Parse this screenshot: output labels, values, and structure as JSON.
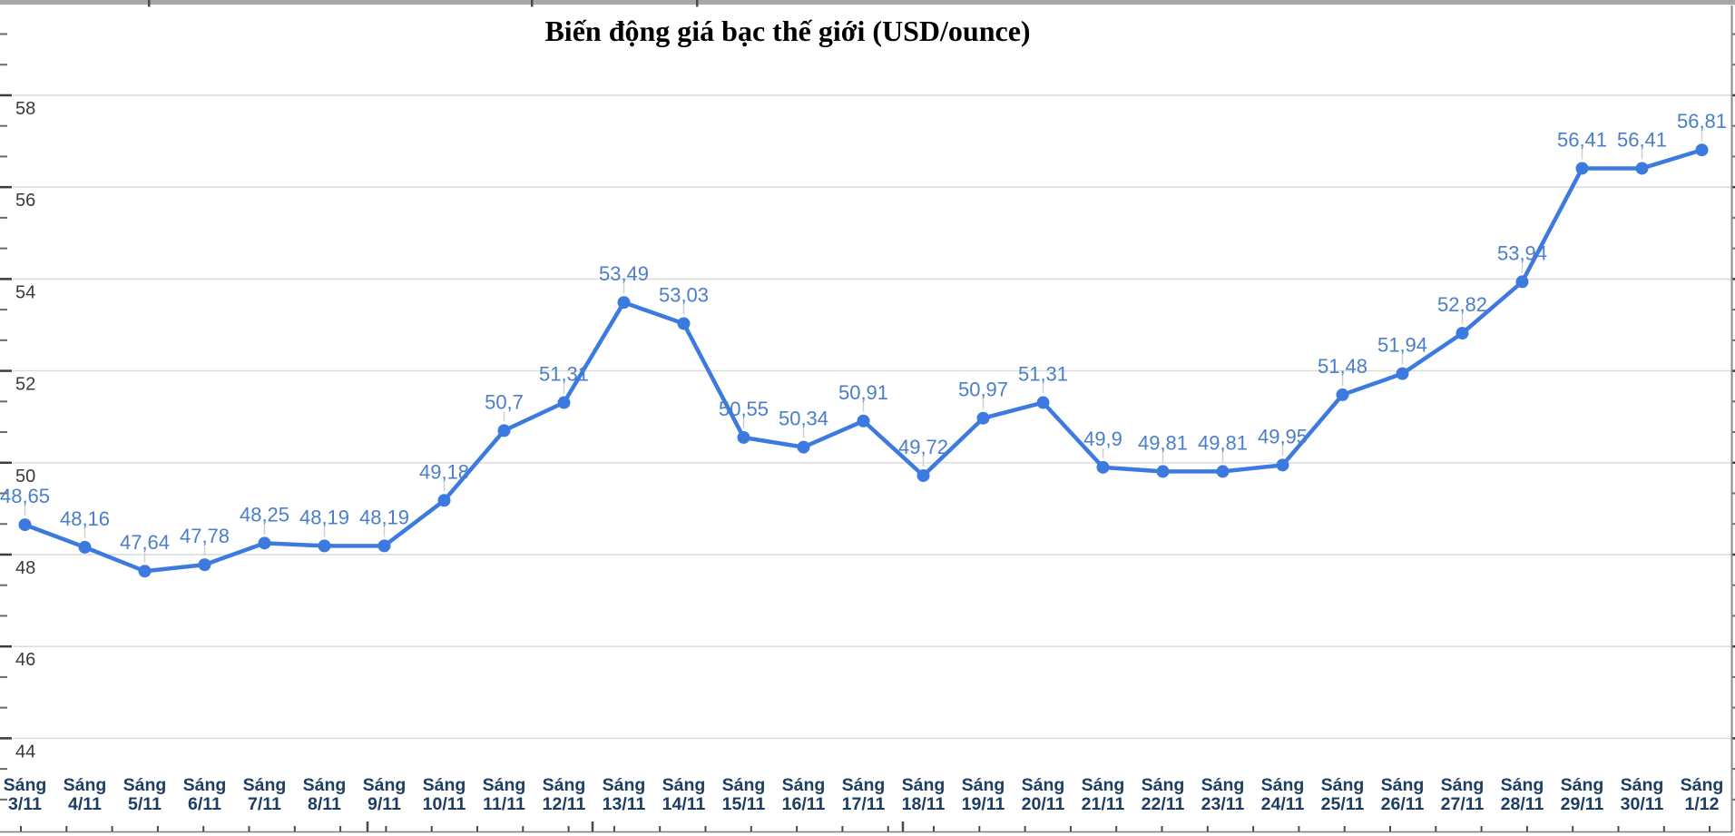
{
  "header": {
    "title": "Biến động giá bạc thế giới (USD/ounce)"
  },
  "chart_data": {
    "type": "line",
    "title": "Biến động giá bạc thế giới (USD/ounce)",
    "category_prefix": "Sáng",
    "categories": [
      "3/11",
      "4/11",
      "5/11",
      "6/11",
      "7/11",
      "8/11",
      "9/11",
      "10/11",
      "11/11",
      "12/11",
      "13/11",
      "14/11",
      "15/11",
      "16/11",
      "17/11",
      "18/11",
      "19/11",
      "20/11",
      "21/11",
      "22/11",
      "23/11",
      "24/11",
      "25/11",
      "26/11",
      "27/11",
      "28/11",
      "29/11",
      "30/11",
      "1/12"
    ],
    "values": [
      48.65,
      48.16,
      47.64,
      47.78,
      48.25,
      48.19,
      48.19,
      49.18,
      50.7,
      51.31,
      53.49,
      53.03,
      50.55,
      50.34,
      50.91,
      49.72,
      50.97,
      51.31,
      49.9,
      49.81,
      49.81,
      49.95,
      51.48,
      51.94,
      52.82,
      53.94,
      56.41,
      56.41,
      56.81
    ],
    "value_labels": [
      "48,65",
      "48,16",
      "47,64",
      "47,78",
      "48,25",
      "48,19",
      "48,19",
      "49,18",
      "50,7",
      "51,31",
      "53,49",
      "53,03",
      "50,55",
      "50,34",
      "50,91",
      "49,72",
      "50,97",
      "51,31",
      "49,9",
      "49,81",
      "49,81",
      "49,95",
      "51,48",
      "51,94",
      "52,82",
      "53,94",
      "56,41",
      "56,41",
      "56,81"
    ],
    "xlabel": "",
    "ylabel": "",
    "y_axis": {
      "ticks": [
        58,
        56,
        54,
        52,
        50,
        48,
        46,
        44
      ],
      "minor_divisions_per_major": 3
    },
    "ylim": [
      44,
      58
    ],
    "grid": true,
    "legend": "none",
    "colors": {
      "line": "#3d7ae0",
      "marker": "#3d7ae0",
      "value_label": "#4a7ecb",
      "title": "#1d3d63",
      "category_label": "#1d3d63",
      "axis_tick_label": "#3a3a3a",
      "gridline": "#dadada",
      "leader_line": "#cfcfcf",
      "frame": "#9a9a9a",
      "tick_mark": "#3c3c3c"
    }
  }
}
